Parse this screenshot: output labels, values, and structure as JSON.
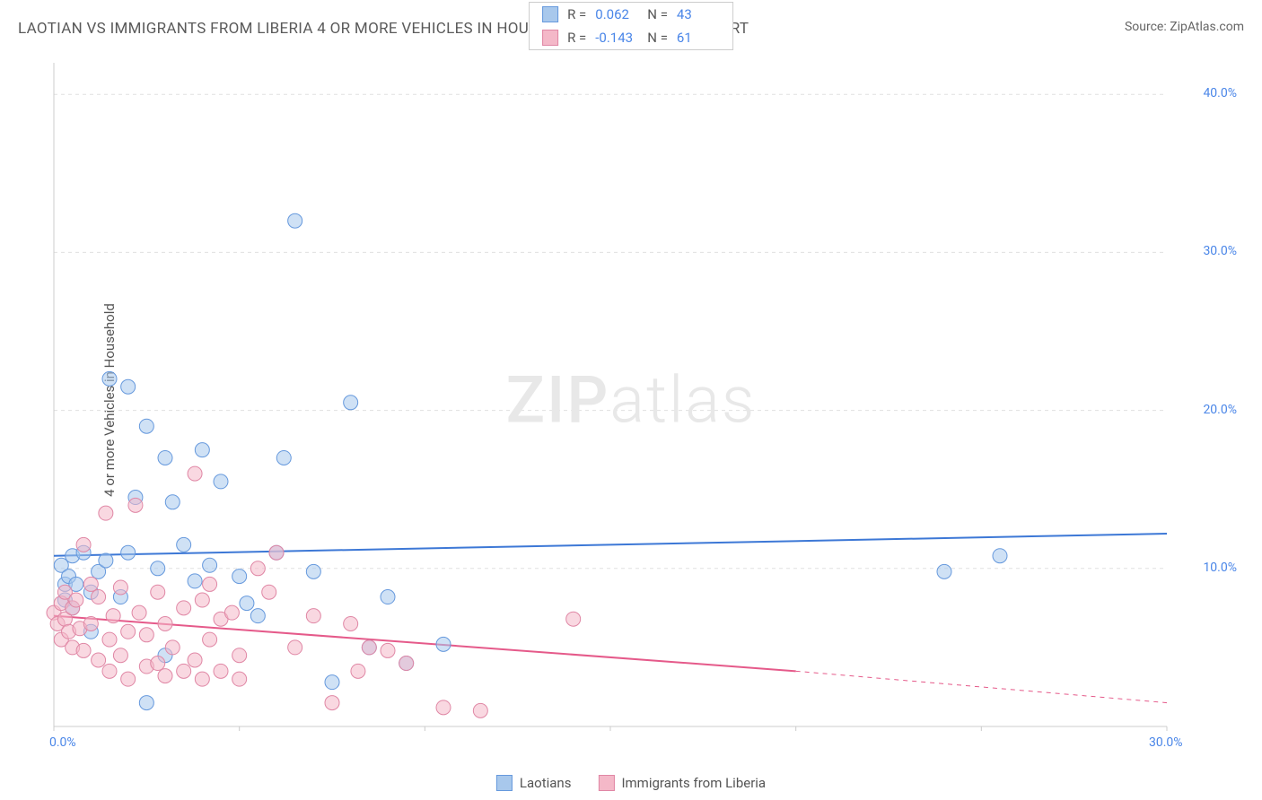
{
  "title": "LAOTIAN VS IMMIGRANTS FROM LIBERIA 4 OR MORE VEHICLES IN HOUSEHOLD CORRELATION CHART",
  "source_label": "Source: ZipAtlas.com",
  "y_axis_label": "4 or more Vehicles in Household",
  "watermark": {
    "bold": "ZIP",
    "light": "atlas"
  },
  "chart": {
    "type": "scatter",
    "xlim": [
      0,
      30
    ],
    "ylim": [
      0,
      42
    ],
    "x_ticks": [
      0,
      30
    ],
    "x_tick_labels": [
      "0.0%",
      "30.0%"
    ],
    "y_ticks": [
      10,
      20,
      30,
      40
    ],
    "y_tick_labels": [
      "10.0%",
      "20.0%",
      "30.0%",
      "40.0%"
    ],
    "grid_color": "#e0e0e0",
    "axis_color": "#cccccc",
    "background_color": "#ffffff",
    "marker_radius": 8,
    "marker_opacity": 0.55,
    "series": [
      {
        "name": "Laotians",
        "color_fill": "#a8c8ec",
        "color_stroke": "#6699dd",
        "r_label": "R =",
        "r": "0.062",
        "n_label": "N =",
        "n": "43",
        "trend": {
          "x1": 0,
          "y1": 10.8,
          "x2": 30,
          "y2": 12.2,
          "color": "#3d78d6",
          "width": 2
        },
        "points": [
          [
            0.2,
            10.2
          ],
          [
            0.3,
            9.0
          ],
          [
            0.3,
            8.0
          ],
          [
            0.4,
            9.5
          ],
          [
            0.5,
            10.8
          ],
          [
            0.5,
            7.5
          ],
          [
            0.6,
            9.0
          ],
          [
            0.8,
            11.0
          ],
          [
            1.0,
            8.5
          ],
          [
            1.0,
            6.0
          ],
          [
            1.2,
            9.8
          ],
          [
            1.4,
            10.5
          ],
          [
            1.5,
            22.0
          ],
          [
            1.8,
            8.2
          ],
          [
            2.0,
            21.5
          ],
          [
            2.0,
            11.0
          ],
          [
            2.2,
            14.5
          ],
          [
            2.5,
            19.0
          ],
          [
            2.8,
            10.0
          ],
          [
            3.0,
            17.0
          ],
          [
            3.0,
            4.5
          ],
          [
            3.2,
            14.2
          ],
          [
            3.5,
            11.5
          ],
          [
            3.8,
            9.2
          ],
          [
            4.0,
            17.5
          ],
          [
            4.2,
            10.2
          ],
          [
            4.5,
            15.5
          ],
          [
            5.0,
            9.5
          ],
          [
            5.2,
            7.8
          ],
          [
            5.5,
            7.0
          ],
          [
            6.0,
            11.0
          ],
          [
            6.2,
            17.0
          ],
          [
            6.5,
            32.0
          ],
          [
            7.0,
            9.8
          ],
          [
            7.5,
            2.8
          ],
          [
            8.0,
            20.5
          ],
          [
            8.5,
            5.0
          ],
          [
            9.0,
            8.2
          ],
          [
            9.5,
            4.0
          ],
          [
            10.5,
            5.2
          ],
          [
            24.0,
            9.8
          ],
          [
            25.5,
            10.8
          ],
          [
            2.5,
            1.5
          ]
        ]
      },
      {
        "name": "Immigrants from Liberia",
        "color_fill": "#f4b8c8",
        "color_stroke": "#e087a5",
        "r_label": "R =",
        "r": "-0.143",
        "n_label": "N =",
        "n": "61",
        "trend": {
          "x1": 0,
          "y1": 7.0,
          "x2": 20,
          "y2": 3.5,
          "color": "#e55a8a",
          "width": 2,
          "dash_after_x": 20,
          "x_end": 30,
          "y_end": 1.5
        },
        "points": [
          [
            0.0,
            7.2
          ],
          [
            0.1,
            6.5
          ],
          [
            0.2,
            7.8
          ],
          [
            0.2,
            5.5
          ],
          [
            0.3,
            6.8
          ],
          [
            0.3,
            8.5
          ],
          [
            0.4,
            6.0
          ],
          [
            0.5,
            7.5
          ],
          [
            0.5,
            5.0
          ],
          [
            0.6,
            8.0
          ],
          [
            0.7,
            6.2
          ],
          [
            0.8,
            11.5
          ],
          [
            0.8,
            4.8
          ],
          [
            1.0,
            9.0
          ],
          [
            1.0,
            6.5
          ],
          [
            1.2,
            8.2
          ],
          [
            1.2,
            4.2
          ],
          [
            1.4,
            13.5
          ],
          [
            1.5,
            5.5
          ],
          [
            1.5,
            3.5
          ],
          [
            1.6,
            7.0
          ],
          [
            1.8,
            8.8
          ],
          [
            1.8,
            4.5
          ],
          [
            2.0,
            6.0
          ],
          [
            2.0,
            3.0
          ],
          [
            2.2,
            14.0
          ],
          [
            2.3,
            7.2
          ],
          [
            2.5,
            5.8
          ],
          [
            2.5,
            3.8
          ],
          [
            2.8,
            8.5
          ],
          [
            2.8,
            4.0
          ],
          [
            3.0,
            6.5
          ],
          [
            3.0,
            3.2
          ],
          [
            3.2,
            5.0
          ],
          [
            3.5,
            7.5
          ],
          [
            3.5,
            3.5
          ],
          [
            3.8,
            16.0
          ],
          [
            3.8,
            4.2
          ],
          [
            4.0,
            8.0
          ],
          [
            4.0,
            3.0
          ],
          [
            4.2,
            5.5
          ],
          [
            4.5,
            6.8
          ],
          [
            4.5,
            3.5
          ],
          [
            4.8,
            7.2
          ],
          [
            5.0,
            4.5
          ],
          [
            5.0,
            3.0
          ],
          [
            5.5,
            10.0
          ],
          [
            5.8,
            8.5
          ],
          [
            6.0,
            11.0
          ],
          [
            6.5,
            5.0
          ],
          [
            7.0,
            7.0
          ],
          [
            7.5,
            1.5
          ],
          [
            8.0,
            6.5
          ],
          [
            8.2,
            3.5
          ],
          [
            8.5,
            5.0
          ],
          [
            9.0,
            4.8
          ],
          [
            9.5,
            4.0
          ],
          [
            10.5,
            1.2
          ],
          [
            11.5,
            1.0
          ],
          [
            14.0,
            6.8
          ],
          [
            4.2,
            9.0
          ]
        ]
      }
    ]
  },
  "bottom_legend": [
    {
      "label": "Laotians",
      "fill": "#a8c8ec",
      "stroke": "#6699dd"
    },
    {
      "label": "Immigrants from Liberia",
      "fill": "#f4b8c8",
      "stroke": "#e087a5"
    }
  ]
}
